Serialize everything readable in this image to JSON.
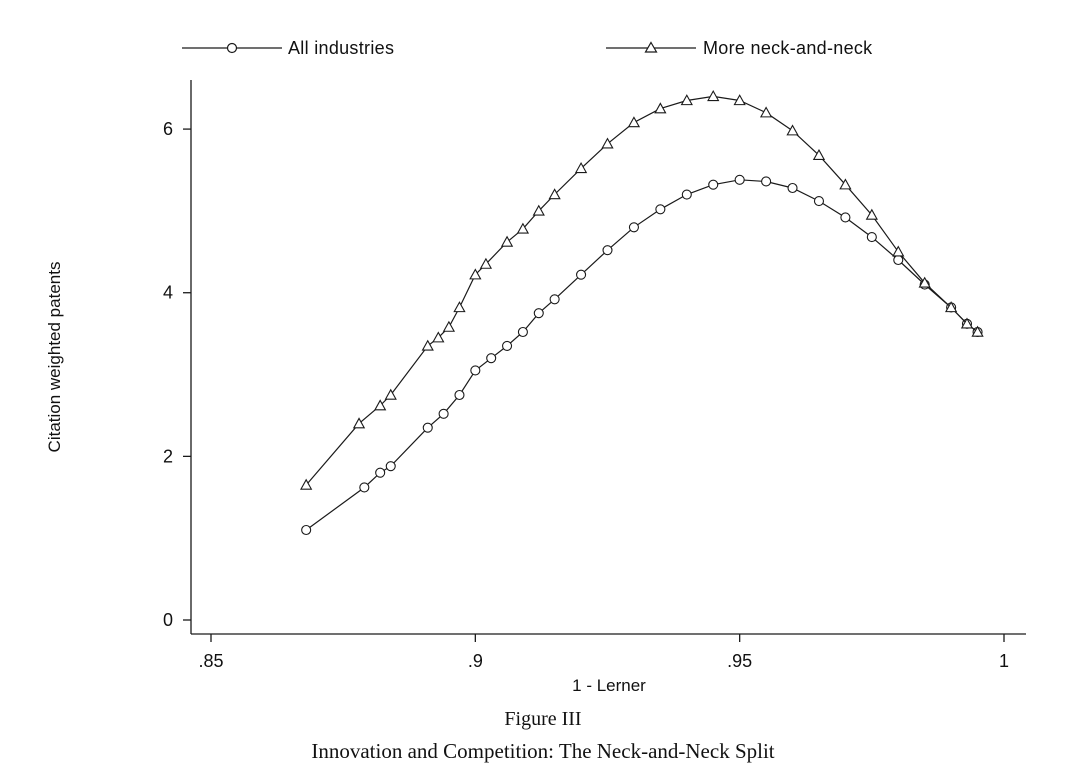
{
  "chart_data": {
    "type": "line",
    "xlabel": "1 - Lerner",
    "ylabel": "Citation weighted patents",
    "xlim": [
      0.85,
      1.0
    ],
    "ylim": [
      0,
      6.6
    ],
    "xticks": [
      ".85",
      ".9",
      ".95",
      "1"
    ],
    "yticks": [
      "0",
      "2",
      "4",
      "6"
    ],
    "legend_position": "top",
    "grid": false,
    "series": [
      {
        "name": "All industries",
        "marker": "circle",
        "x": [
          0.868,
          0.879,
          0.882,
          0.884,
          0.891,
          0.894,
          0.897,
          0.9,
          0.903,
          0.906,
          0.909,
          0.912,
          0.915,
          0.92,
          0.925,
          0.93,
          0.935,
          0.94,
          0.945,
          0.95,
          0.955,
          0.96,
          0.965,
          0.97,
          0.975,
          0.98,
          0.985,
          0.99,
          0.993,
          0.995
        ],
        "y": [
          1.1,
          1.62,
          1.8,
          1.88,
          2.35,
          2.52,
          2.75,
          3.05,
          3.2,
          3.35,
          3.52,
          3.75,
          3.92,
          4.22,
          4.52,
          4.8,
          5.02,
          5.2,
          5.32,
          5.38,
          5.36,
          5.28,
          5.12,
          4.92,
          4.68,
          4.4,
          4.1,
          3.82,
          3.62,
          3.52
        ]
      },
      {
        "name": "More neck-and-neck",
        "marker": "triangle",
        "x": [
          0.868,
          0.878,
          0.882,
          0.884,
          0.891,
          0.893,
          0.895,
          0.897,
          0.9,
          0.902,
          0.906,
          0.909,
          0.912,
          0.915,
          0.92,
          0.925,
          0.93,
          0.935,
          0.94,
          0.945,
          0.95,
          0.955,
          0.96,
          0.965,
          0.97,
          0.975,
          0.98,
          0.985,
          0.99,
          0.993,
          0.995
        ],
        "y": [
          1.65,
          2.4,
          2.62,
          2.75,
          3.35,
          3.45,
          3.58,
          3.82,
          4.22,
          4.35,
          4.62,
          4.78,
          5.0,
          5.2,
          5.52,
          5.82,
          6.08,
          6.25,
          6.35,
          6.4,
          6.35,
          6.2,
          5.98,
          5.68,
          5.32,
          4.95,
          4.5,
          4.12,
          3.82,
          3.62,
          3.52
        ]
      }
    ]
  },
  "figure": {
    "number": "Figure III",
    "caption": "Innovation and Competition: The Neck-and-Neck Split"
  },
  "colors": {
    "line": "#1a1a1a",
    "background": "#ffffff"
  }
}
